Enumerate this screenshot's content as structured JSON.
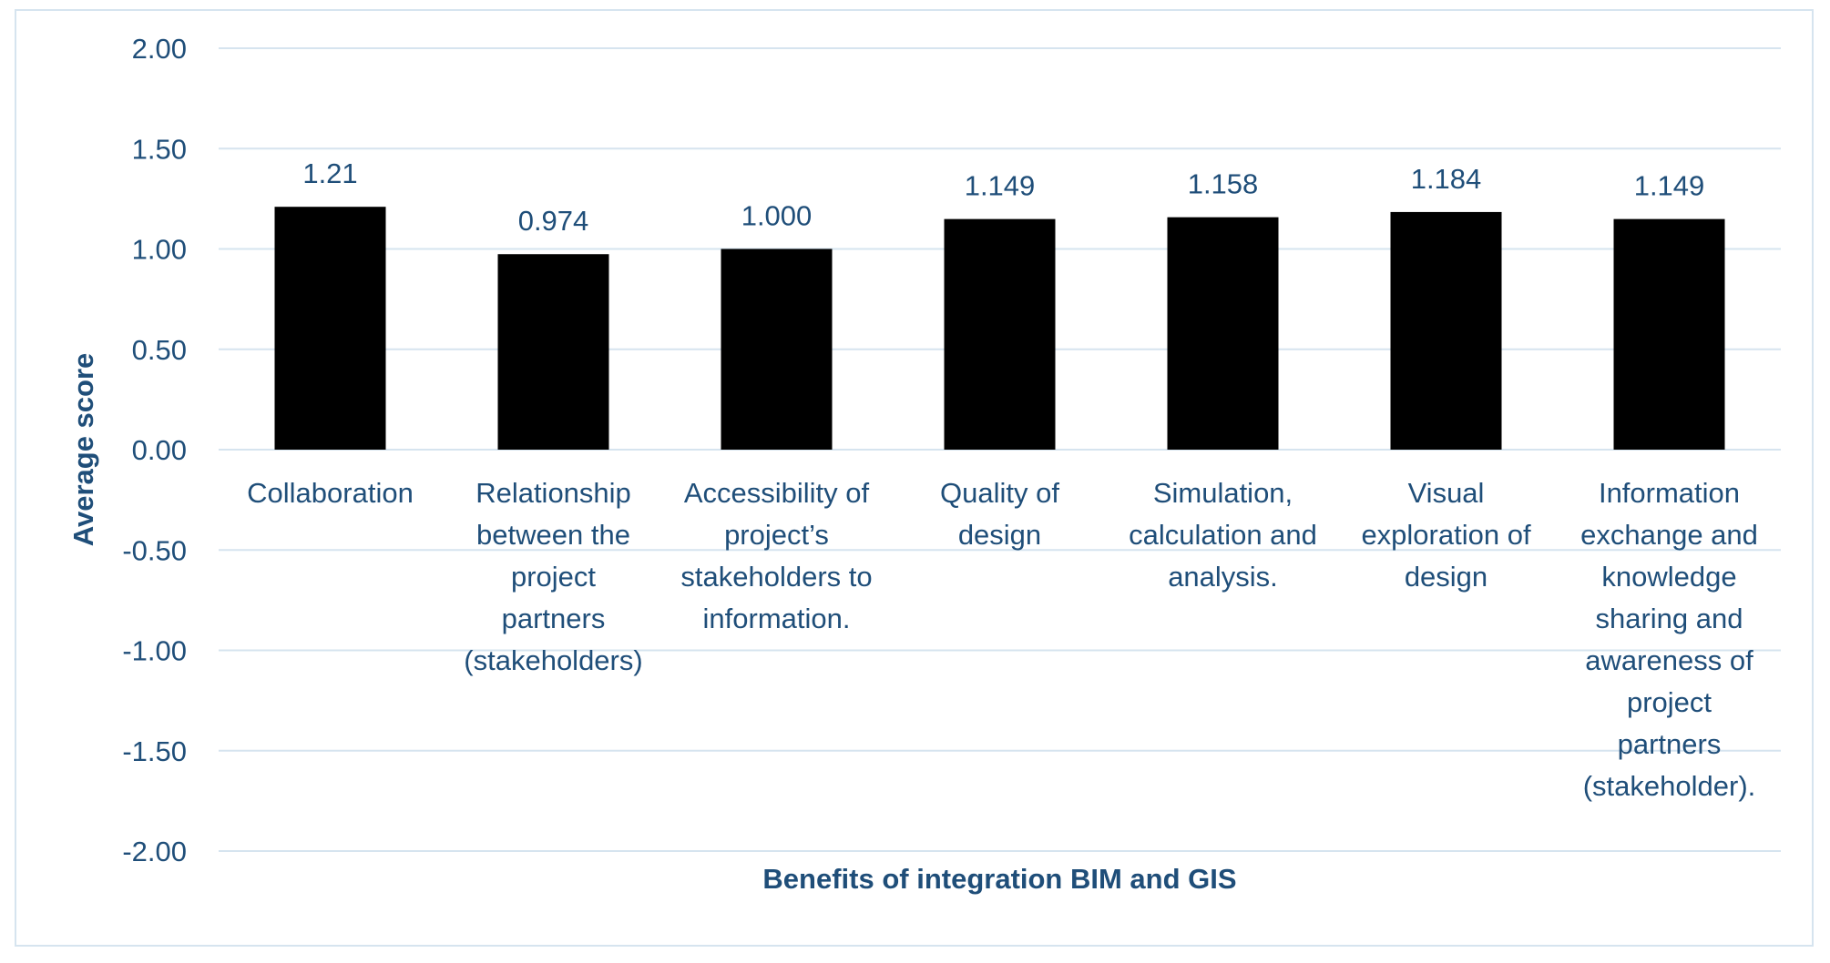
{
  "chart_data": {
    "type": "bar",
    "categories": [
      [
        "Collaboration"
      ],
      [
        "Relationship",
        "between the",
        "project",
        "partners",
        "(stakeholders)"
      ],
      [
        "Accessibility of",
        "project’s",
        "stakeholders to",
        "information."
      ],
      [
        "Quality of",
        "design"
      ],
      [
        "Simulation,",
        "calculation and",
        "analysis."
      ],
      [
        "Visual",
        "exploration of",
        "design"
      ],
      [
        "Information",
        "exchange and",
        "knowledge",
        "sharing and",
        "awareness of",
        "project",
        "partners",
        "(stakeholder)."
      ]
    ],
    "values": [
      1.21,
      0.974,
      1.0,
      1.149,
      1.158,
      1.184,
      1.149
    ],
    "data_labels": [
      "1.21",
      "0.974",
      "1.000",
      "1.149",
      "1.158",
      "1.184",
      "1.149"
    ],
    "xlabel": "Benefits of integration BIM and GIS",
    "ylabel": "Average score",
    "ylim": [
      -2.0,
      2.0
    ],
    "y_ticks": [
      "2.00",
      "1.50",
      "1.00",
      "0.50",
      "0.00",
      "-0.50",
      "-1.00",
      "-1.50",
      "-2.00"
    ],
    "y_tick_values": [
      2.0,
      1.5,
      1.0,
      0.5,
      0.0,
      -0.5,
      -1.0,
      -1.5,
      -2.0
    ],
    "grid": true,
    "legend": "none",
    "colors": {
      "bar": "#000000",
      "text": "#1f4e79",
      "grid": "#d6e4ef",
      "border": "#d6e4ef"
    }
  }
}
